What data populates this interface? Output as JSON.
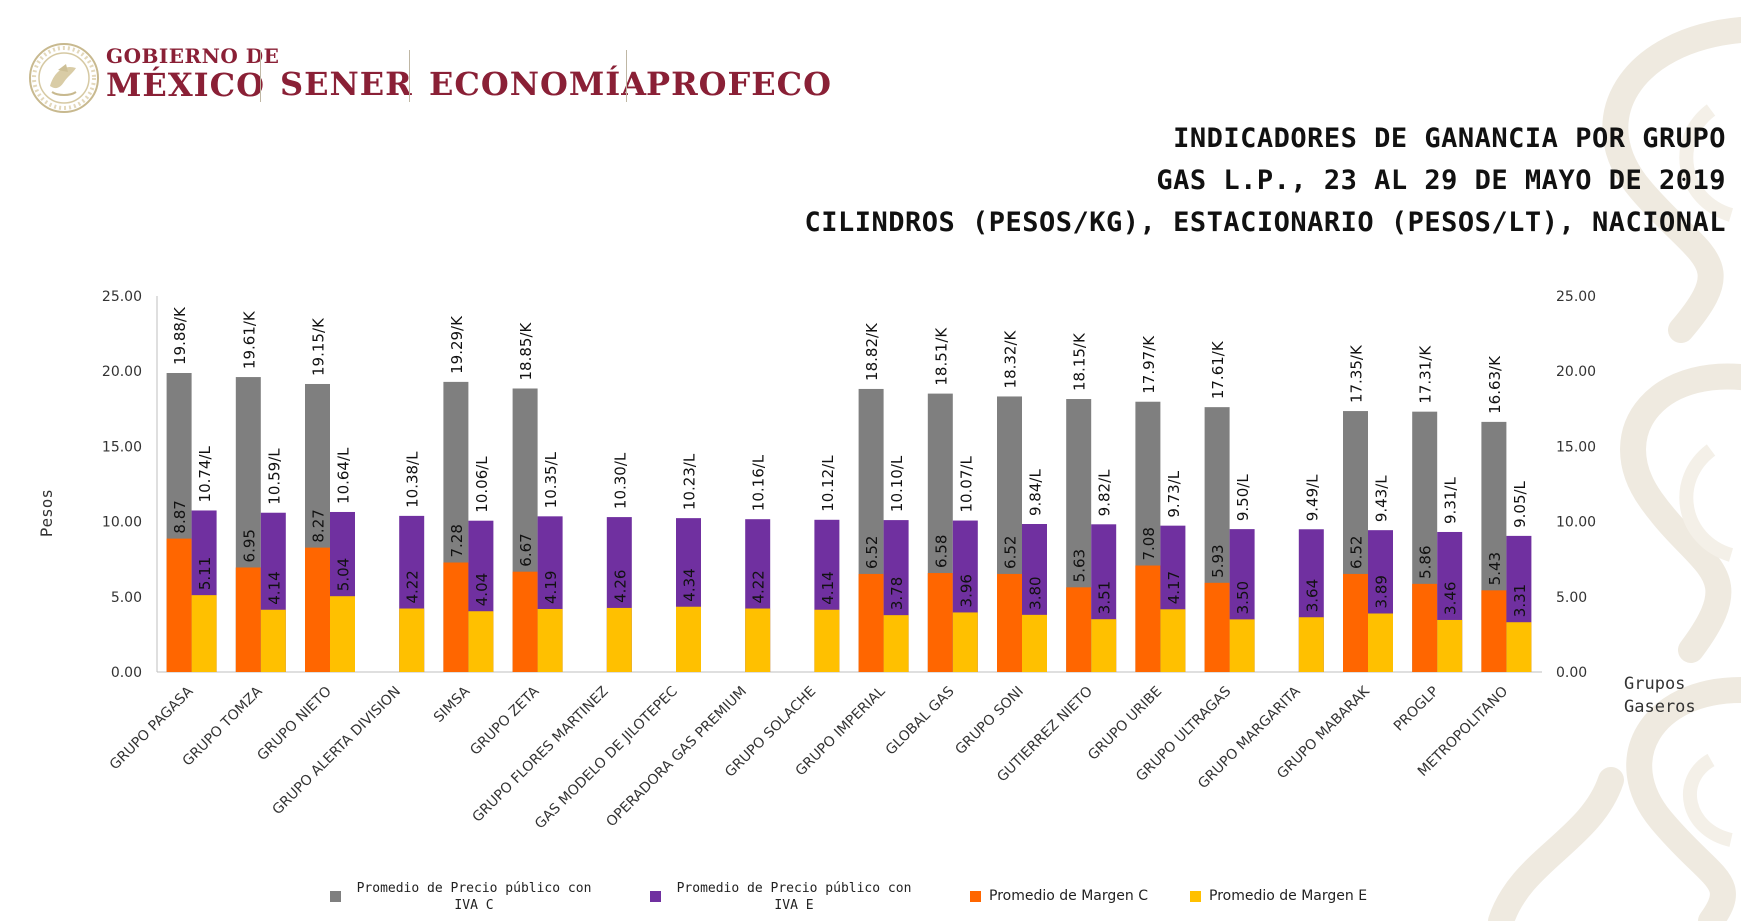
{
  "header": {
    "seal_text": "ESTADOS UNIDOS MEXICANOS",
    "gob_line1": "GOBIERNO DE",
    "gob_line2": "MÉXICO",
    "agencies": [
      "SENER",
      "ECONOMÍA",
      "PROFECO"
    ],
    "brand_color": "#8a2036"
  },
  "title_lines": [
    "INDICADORES DE GANANCIA POR GRUPO",
    "GAS L.P., 23 AL 29 DE MAYO DE 2019",
    "CILINDROS (PESOS/KG), ESTACIONARIO (PESOS/LT), NACIONAL"
  ],
  "chart_data": {
    "type": "bar",
    "ylabel": "Pesos",
    "xlabel": "Grupos Gaseros",
    "ylim": [
      0,
      25
    ],
    "yticks": [
      "0.00",
      "5.00",
      "10.00",
      "15.00",
      "20.00",
      "25.00"
    ],
    "grid": false,
    "legend_position": "bottom",
    "categories": [
      "GRUPO PAGASA",
      "GRUPO TOMZA",
      "GRUPO NIETO",
      "GRUPO ALERTA DIVISION",
      "SIMSA",
      "GRUPO ZETA",
      "GRUPO FLORES MARTINEZ",
      "GAS MODELO DE JILOTEPEC",
      "OPERADORA GAS PREMIUM",
      "GRUPO SOLACHE",
      "GRUPO IMPERIAL",
      "GLOBAL GAS",
      "GRUPO SONI",
      "GUTIERREZ NIETO",
      "GRUPO URIBE",
      "GRUPO ULTRAGAS",
      "GRUPO MARGARITA",
      "GRUPO MABARAK",
      "PROGLP",
      "METROPOLITANO"
    ],
    "series": [
      {
        "name": "Promedio de Precio público con IVA C",
        "color": "#7f7f7f",
        "values": [
          19.88,
          19.61,
          19.15,
          null,
          19.29,
          18.85,
          null,
          null,
          null,
          null,
          18.82,
          18.51,
          18.32,
          18.15,
          17.97,
          17.61,
          null,
          17.35,
          17.31,
          16.63
        ],
        "labels": [
          "19.88/K",
          "19.61/K",
          "19.15/K",
          null,
          "19.29/K",
          "18.85/K",
          null,
          null,
          null,
          null,
          "18.82/K",
          "18.51/K",
          "18.32/K",
          "18.15/K",
          "17.97/K",
          "17.61/K",
          null,
          "17.35/K",
          "17.31/K",
          "16.63/K"
        ]
      },
      {
        "name": "Promedio de Precio público con IVA E",
        "color": "#7030a0",
        "values": [
          10.74,
          10.59,
          10.64,
          10.38,
          10.06,
          10.35,
          10.3,
          10.23,
          10.16,
          10.12,
          10.1,
          10.07,
          9.84,
          9.82,
          9.73,
          9.5,
          9.49,
          9.43,
          9.31,
          9.05
        ],
        "labels": [
          "10.74/L",
          "10.59/L",
          "10.64/L",
          "10.38/L",
          "10.06/L",
          "10.35/L",
          "10.30/L",
          "10.23/L",
          "10.16/L",
          "10.12/L",
          "10.10/L",
          "10.07/L",
          "9.84/L",
          "9.82/L",
          "9.73/L",
          "9.50/L",
          "9.49/L",
          "9.43/L",
          "9.31/L",
          "9.05/L"
        ]
      },
      {
        "name": "Promedio de Margen C",
        "color": "#ff6600",
        "values": [
          8.87,
          6.95,
          8.27,
          null,
          7.28,
          6.67,
          null,
          null,
          null,
          null,
          6.52,
          6.58,
          6.52,
          5.63,
          7.08,
          5.93,
          null,
          6.52,
          5.86,
          5.43
        ],
        "labels": [
          "8.87",
          "6.95",
          "8.27",
          null,
          "7.28",
          "6.67",
          null,
          null,
          null,
          null,
          "6.52",
          "6.58",
          "6.52",
          "5.63",
          "7.08",
          "5.93",
          null,
          "6.52",
          "5.86",
          "5.43"
        ]
      },
      {
        "name": "Promedio de Margen E",
        "color": "#ffc000",
        "values": [
          5.11,
          4.14,
          5.04,
          4.22,
          4.04,
          4.19,
          4.26,
          4.34,
          4.22,
          4.14,
          3.78,
          3.96,
          3.8,
          3.51,
          4.17,
          3.5,
          3.64,
          3.89,
          3.46,
          3.31
        ],
        "labels": [
          "5.11",
          "4.14",
          "5.04",
          "4.22",
          "4.04",
          "4.19",
          "4.26",
          "4.34",
          "4.22",
          "4.14",
          "3.78",
          "3.96",
          "3.80",
          "3.51",
          "4.17",
          "3.50",
          "3.64",
          "3.89",
          "3.46",
          "3.31"
        ]
      }
    ]
  },
  "legend": {
    "ivac_line1": "Promedio de Precio público con",
    "ivac_line2": "IVA C",
    "ivae_line1": "Promedio de Precio público con",
    "ivae_line2": "IVA E",
    "margen_c": "Promedio de Margen C",
    "margen_e": "Promedio de Margen E"
  }
}
